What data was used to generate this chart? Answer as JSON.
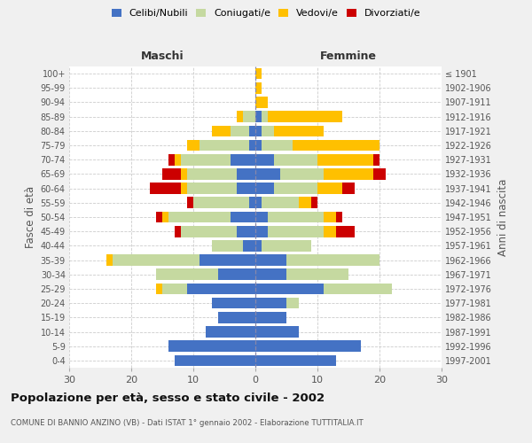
{
  "age_groups": [
    "0-4",
    "5-9",
    "10-14",
    "15-19",
    "20-24",
    "25-29",
    "30-34",
    "35-39",
    "40-44",
    "45-49",
    "50-54",
    "55-59",
    "60-64",
    "65-69",
    "70-74",
    "75-79",
    "80-84",
    "85-89",
    "90-94",
    "95-99",
    "100+"
  ],
  "birth_years": [
    "1997-2001",
    "1992-1996",
    "1987-1991",
    "1982-1986",
    "1977-1981",
    "1972-1976",
    "1967-1971",
    "1962-1966",
    "1957-1961",
    "1952-1956",
    "1947-1951",
    "1942-1946",
    "1937-1941",
    "1932-1936",
    "1927-1931",
    "1922-1926",
    "1917-1921",
    "1912-1916",
    "1907-1911",
    "1902-1906",
    "≤ 1901"
  ],
  "males": {
    "celibi": [
      13,
      14,
      8,
      6,
      7,
      11,
      6,
      9,
      2,
      3,
      4,
      1,
      3,
      3,
      4,
      1,
      1,
      0,
      0,
      0,
      0
    ],
    "coniugati": [
      0,
      0,
      0,
      0,
      0,
      4,
      10,
      14,
      5,
      9,
      10,
      9,
      8,
      8,
      8,
      8,
      3,
      2,
      0,
      0,
      0
    ],
    "vedovi": [
      0,
      0,
      0,
      0,
      0,
      1,
      0,
      1,
      0,
      0,
      1,
      0,
      1,
      1,
      1,
      2,
      3,
      1,
      0,
      0,
      0
    ],
    "divorziati": [
      0,
      0,
      0,
      0,
      0,
      0,
      0,
      0,
      0,
      1,
      1,
      1,
      5,
      3,
      1,
      0,
      0,
      0,
      0,
      0,
      0
    ]
  },
  "females": {
    "nubili": [
      13,
      17,
      7,
      5,
      5,
      11,
      5,
      5,
      1,
      2,
      2,
      1,
      3,
      4,
      3,
      1,
      1,
      1,
      0,
      0,
      0
    ],
    "coniugate": [
      0,
      0,
      0,
      0,
      2,
      11,
      10,
      15,
      8,
      9,
      9,
      6,
      7,
      7,
      7,
      5,
      2,
      1,
      0,
      0,
      0
    ],
    "vedove": [
      0,
      0,
      0,
      0,
      0,
      0,
      0,
      0,
      0,
      2,
      2,
      2,
      4,
      8,
      9,
      14,
      8,
      12,
      2,
      1,
      1
    ],
    "divorziate": [
      0,
      0,
      0,
      0,
      0,
      0,
      0,
      0,
      0,
      3,
      1,
      1,
      2,
      2,
      1,
      0,
      0,
      0,
      0,
      0,
      0
    ]
  },
  "colors": {
    "celibi_nubili": "#4472c4",
    "coniugati": "#c5d9a0",
    "vedovi": "#ffc000",
    "divorziati": "#cc0000"
  },
  "xlim": 30,
  "title": "Popolazione per età, sesso e stato civile - 2002",
  "subtitle": "COMUNE DI BANNIO ANZINO (VB) - Dati ISTAT 1° gennaio 2002 - Elaborazione TUTTITALIA.IT",
  "ylabel_left": "Fasce di età",
  "ylabel_right": "Anni di nascita",
  "xlabel_left": "Maschi",
  "xlabel_right": "Femmine",
  "bg_color": "#f0f0f0",
  "plot_bg_color": "#ffffff"
}
